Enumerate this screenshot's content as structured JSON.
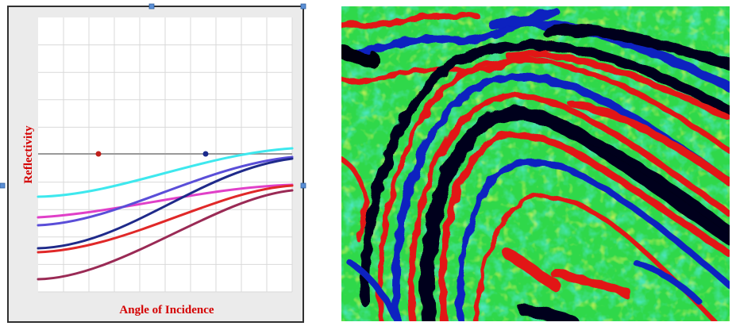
{
  "figure": {
    "y_label": "Reflectivity",
    "x_label": "Angle of Incidence"
  }
}
